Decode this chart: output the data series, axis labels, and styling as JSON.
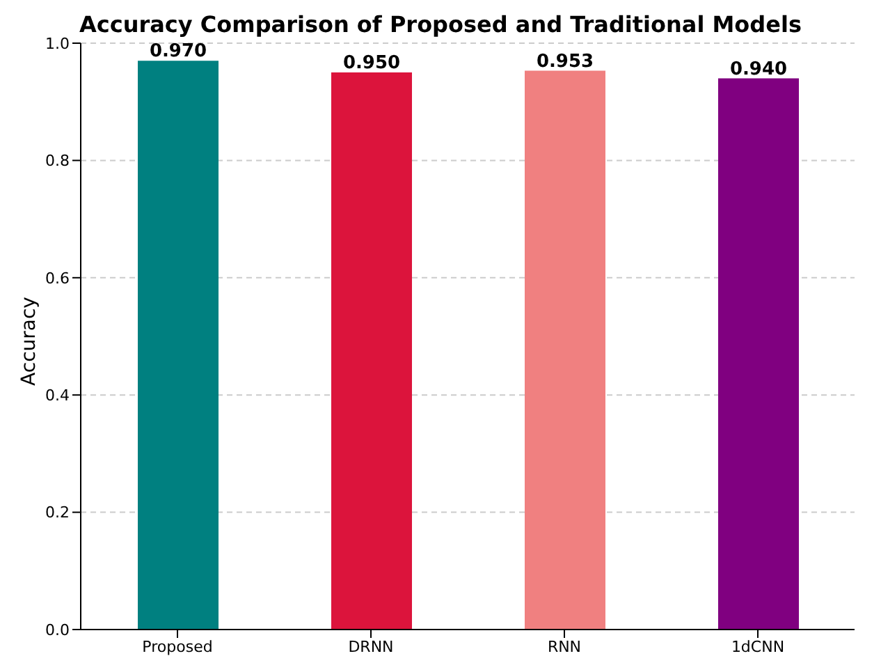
{
  "chart_data": {
    "type": "bar",
    "title": "Accuracy Comparison of Proposed and Traditional Models",
    "ylabel": "Accuracy",
    "categories": [
      "Proposed",
      "DRNN",
      "RNN",
      "1dCNN"
    ],
    "values": [
      0.97,
      0.95,
      0.953,
      0.94
    ],
    "colors": [
      "#008080",
      "#dc143c",
      "#f08080",
      "#800080"
    ],
    "value_labels": [
      "0.970",
      "0.950",
      "0.953",
      "0.940"
    ],
    "ylim": [
      0,
      1
    ],
    "yticks": [
      {
        "value": 0,
        "label": "0.0"
      },
      {
        "value": 0.2,
        "label": "0.2"
      },
      {
        "value": 0.4,
        "label": "0.4"
      },
      {
        "value": 0.6,
        "label": "0.6"
      },
      {
        "value": 0.8,
        "label": "0.8"
      },
      {
        "value": 1,
        "label": "1.0"
      }
    ],
    "grid": "y"
  }
}
